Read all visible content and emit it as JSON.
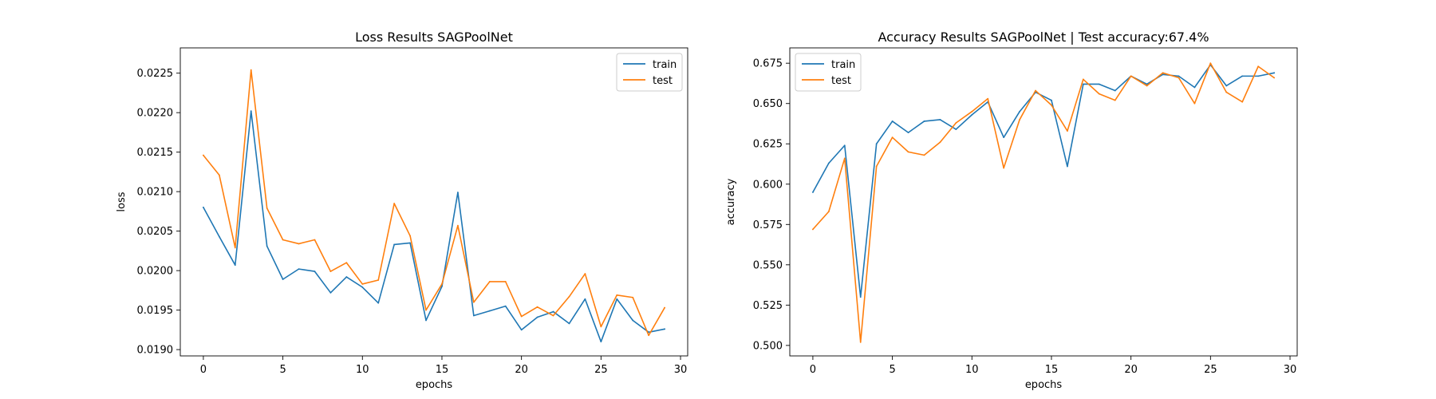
{
  "chart_data": [
    {
      "type": "line",
      "title": "Loss Results SAGPoolNet",
      "xlabel": "epochs",
      "ylabel": "loss",
      "xlim": [
        -1.45,
        30.45
      ],
      "ylim": [
        0.01892,
        0.02282
      ],
      "xticks": [
        0,
        5,
        10,
        15,
        20,
        25,
        30
      ],
      "xtick_labels": [
        "0",
        "5",
        "10",
        "15",
        "20",
        "25",
        "30"
      ],
      "yticks": [
        0.019,
        0.0195,
        0.02,
        0.0205,
        0.021,
        0.0215,
        0.022,
        0.0225
      ],
      "ytick_labels": [
        "0.0190",
        "0.0195",
        "0.0200",
        "0.0205",
        "0.0210",
        "0.0215",
        "0.0220",
        "0.0225"
      ],
      "legend_position": "top-right",
      "grid": false,
      "x": [
        0,
        1,
        2,
        3,
        4,
        5,
        6,
        7,
        8,
        9,
        10,
        11,
        12,
        13,
        14,
        15,
        16,
        17,
        18,
        19,
        20,
        21,
        22,
        23,
        24,
        25,
        26,
        27,
        28,
        29
      ],
      "series": [
        {
          "name": "train",
          "color": "#1f77b4",
          "values": [
            0.0208,
            0.02043,
            0.02007,
            0.02202,
            0.02031,
            0.01989,
            0.02002,
            0.01999,
            0.01972,
            0.01992,
            0.01979,
            0.01959,
            0.02033,
            0.02035,
            0.01937,
            0.0198,
            0.02099,
            0.01943,
            0.01949,
            0.01955,
            0.01925,
            0.01941,
            0.01948,
            0.01933,
            0.01964,
            0.0191,
            0.01964,
            0.01937,
            0.01922,
            0.01926
          ]
        },
        {
          "name": "test",
          "color": "#ff7f0e",
          "values": [
            0.02146,
            0.02121,
            0.02029,
            0.02254,
            0.02079,
            0.02039,
            0.02034,
            0.02039,
            0.01999,
            0.0201,
            0.01983,
            0.01988,
            0.02085,
            0.02044,
            0.0195,
            0.01983,
            0.02057,
            0.0196,
            0.01986,
            0.01986,
            0.01942,
            0.01954,
            0.01943,
            0.01967,
            0.01996,
            0.01929,
            0.01969,
            0.01966,
            0.01918,
            0.01953
          ]
        }
      ]
    },
    {
      "type": "line",
      "title": "Accuracy Results SAGPoolNet | Test accuracy:67.4%",
      "xlabel": "epochs",
      "ylabel": "accuracy",
      "xlim": [
        -1.45,
        30.45
      ],
      "ylim": [
        0.4935,
        0.6845
      ],
      "xticks": [
        0,
        5,
        10,
        15,
        20,
        25,
        30
      ],
      "xtick_labels": [
        "0",
        "5",
        "10",
        "15",
        "20",
        "25",
        "30"
      ],
      "yticks": [
        0.5,
        0.525,
        0.55,
        0.575,
        0.6,
        0.625,
        0.65,
        0.675
      ],
      "ytick_labels": [
        "0.500",
        "0.525",
        "0.550",
        "0.575",
        "0.600",
        "0.625",
        "0.650",
        "0.675"
      ],
      "legend_position": "top-left",
      "grid": false,
      "x": [
        0,
        1,
        2,
        3,
        4,
        5,
        6,
        7,
        8,
        9,
        10,
        11,
        12,
        13,
        14,
        15,
        16,
        17,
        18,
        19,
        20,
        21,
        22,
        23,
        24,
        25,
        26,
        27,
        28,
        29
      ],
      "series": [
        {
          "name": "train",
          "color": "#1f77b4",
          "values": [
            0.595,
            0.613,
            0.624,
            0.53,
            0.625,
            0.639,
            0.632,
            0.639,
            0.64,
            0.634,
            0.643,
            0.651,
            0.629,
            0.645,
            0.657,
            0.652,
            0.611,
            0.662,
            0.662,
            0.658,
            0.667,
            0.662,
            0.668,
            0.667,
            0.66,
            0.674,
            0.661,
            0.667,
            0.667,
            0.669
          ]
        },
        {
          "name": "test",
          "color": "#ff7f0e",
          "values": [
            0.572,
            0.583,
            0.616,
            0.502,
            0.611,
            0.629,
            0.62,
            0.618,
            0.626,
            0.638,
            0.645,
            0.653,
            0.61,
            0.64,
            0.658,
            0.649,
            0.633,
            0.665,
            0.656,
            0.652,
            0.667,
            0.661,
            0.669,
            0.666,
            0.65,
            0.675,
            0.657,
            0.651,
            0.673,
            0.666
          ]
        }
      ]
    }
  ]
}
